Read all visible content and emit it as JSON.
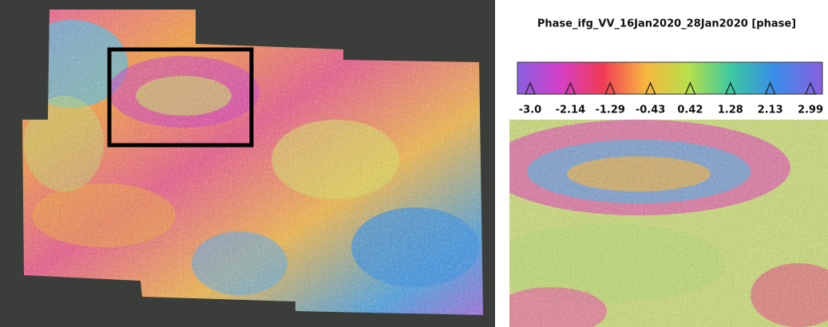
{
  "legend": {
    "title": "Phase_ifg_VV_16Jan2020_28Jan2020 [phase]",
    "ticks": [
      {
        "value": -3.0,
        "label": "-3.0"
      },
      -2.14,
      -1.29,
      -0.43,
      0.42,
      1.28,
      2.13,
      2.99
    ]
  }
}
